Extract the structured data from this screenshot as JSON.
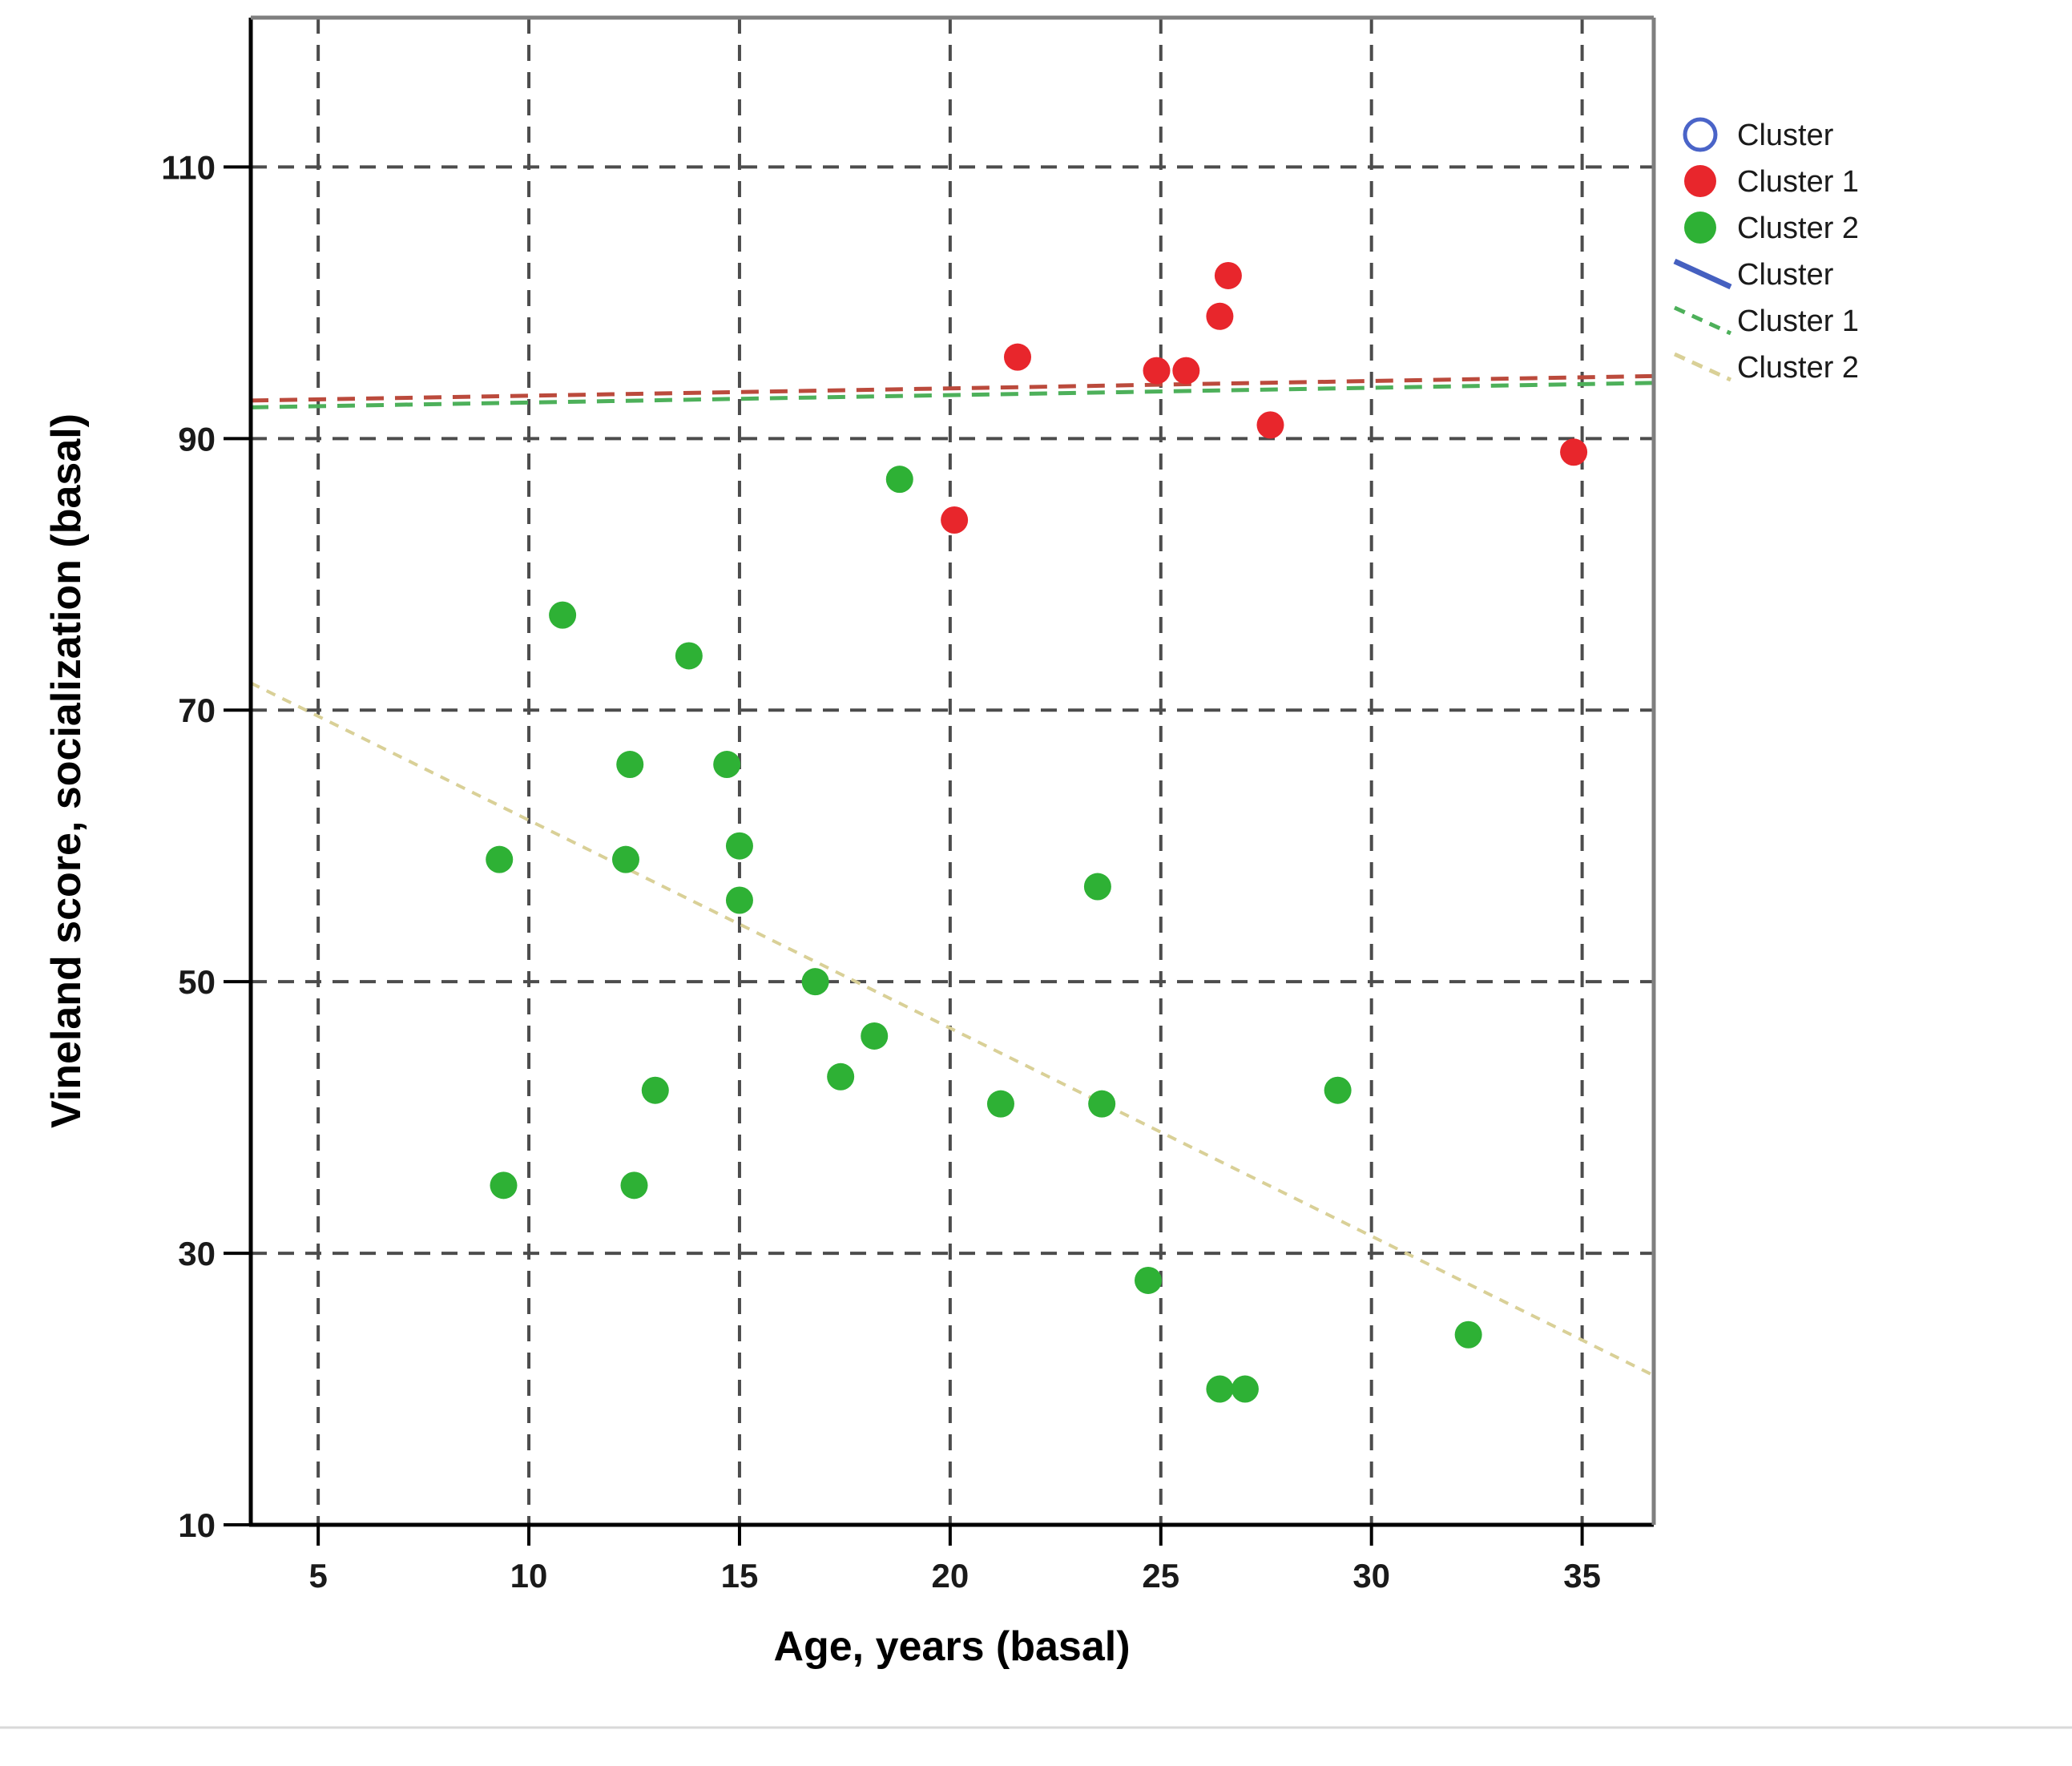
{
  "page": {
    "background": "#ffffff",
    "footer": {
      "divider_color": "#d9d9d9"
    }
  },
  "chart_data": {
    "type": "scatter",
    "title": "",
    "xlabel": "Age, years (basal)",
    "ylabel": "Vineland score, socialization (basal)",
    "xlim": [
      3.4,
      36.7
    ],
    "ylim": [
      10,
      121
    ],
    "x_ticks": [
      5,
      10,
      15,
      20,
      25,
      30,
      35
    ],
    "y_ticks": [
      10,
      30,
      50,
      70,
      90,
      110
    ],
    "grid": "dashed",
    "grid_color": "#4c4c4c",
    "axis_spine_color_left_bottom": "#000000",
    "axis_spine_color_top_right": "#7f7f7f",
    "series": [
      {
        "name": "Cluster",
        "marker": "open-circle",
        "color": "#4a64c8",
        "points": []
      },
      {
        "name": "Cluster 1",
        "marker": "filled-circle",
        "color": "#e8262c",
        "points": [
          [
            20.1,
            84
          ],
          [
            21.6,
            96
          ],
          [
            24.9,
            95
          ],
          [
            25.6,
            95
          ],
          [
            26.4,
            99
          ],
          [
            26.6,
            102
          ],
          [
            27.6,
            91
          ],
          [
            34.8,
            89
          ]
        ]
      },
      {
        "name": "Cluster 2",
        "marker": "filled-circle",
        "color": "#2eb135",
        "points": [
          [
            9.3,
            59
          ],
          [
            9.4,
            35
          ],
          [
            10.8,
            77
          ],
          [
            12.3,
            59
          ],
          [
            12.4,
            66
          ],
          [
            12.5,
            35
          ],
          [
            13.0,
            42
          ],
          [
            13.8,
            74
          ],
          [
            14.7,
            66
          ],
          [
            15.0,
            60
          ],
          [
            15.0,
            56
          ],
          [
            16.8,
            50
          ],
          [
            17.4,
            43
          ],
          [
            18.2,
            46
          ],
          [
            18.8,
            87
          ],
          [
            21.2,
            41
          ],
          [
            23.5,
            57
          ],
          [
            23.6,
            41
          ],
          [
            24.7,
            28
          ],
          [
            26.4,
            20
          ],
          [
            27.0,
            20
          ],
          [
            29.2,
            42
          ],
          [
            32.3,
            24
          ]
        ]
      }
    ],
    "fit_lines": [
      {
        "name": "Cluster 1 fit (upper red-brown stroke)",
        "color": "#bb4a3c",
        "dashed": true,
        "x1": 3.4,
        "y1": 92.8,
        "x2": 36.7,
        "y2": 94.6
      },
      {
        "name": "Cluster 1 fit (green stroke)",
        "color": "#4db05a",
        "dashed": true,
        "x1": 3.4,
        "y1": 92.3,
        "x2": 36.7,
        "y2": 94.1
      },
      {
        "name": "Cluster 2 fit",
        "color": "#d9d097",
        "dashed": true,
        "x1": 3.4,
        "y1": 72.0,
        "x2": 36.7,
        "y2": 21.0
      }
    ],
    "legend": {
      "position": "right-top",
      "entries": [
        {
          "label": "Cluster",
          "swatch": "open-circle",
          "color": "#4a64c8"
        },
        {
          "label": "Cluster 1",
          "swatch": "filled-circle",
          "color": "#e8262c"
        },
        {
          "label": "Cluster 2",
          "swatch": "filled-circle",
          "color": "#2eb135"
        },
        {
          "label": "Cluster",
          "swatch": "solid-line",
          "color": "#4560c0"
        },
        {
          "label": "Cluster 1",
          "swatch": "dashed-line",
          "color": "#4db05a"
        },
        {
          "label": "Cluster 2",
          "swatch": "dashed-line",
          "color": "#d9d097"
        }
      ]
    }
  }
}
